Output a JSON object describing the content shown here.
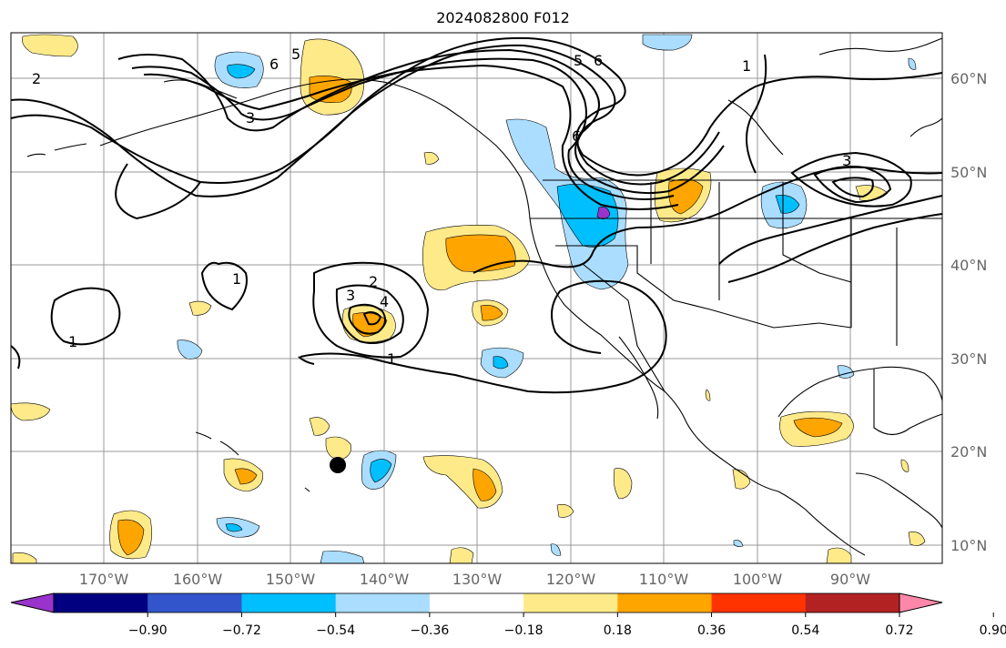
{
  "title": "2024082800 F012",
  "lat_labels": [
    "60°N",
    "50°N",
    "40°N",
    "30°N",
    "20°N",
    "10°N"
  ],
  "lon_labels": [
    "170°W",
    "160°W",
    "150°W",
    "140°W",
    "130°W",
    "120°W",
    "110°W",
    "100°W",
    "90°W"
  ],
  "colorbar": {
    "colors": [
      "#9933cc",
      "#000080",
      "#3355cc",
      "#00bfff",
      "#aaddff",
      "#ffffff",
      "#ffea8a",
      "#ffa500",
      "#ff3300",
      "#b22222",
      "#ff88aa"
    ],
    "tick_labels": [
      "−0.90",
      "−0.72",
      "−0.54",
      "−0.36",
      "−0.18",
      "0.18",
      "0.36",
      "0.54",
      "0.72",
      "0.90"
    ]
  },
  "contour_labels": [
    "1",
    "1",
    "1",
    "2",
    "3",
    "4",
    "3",
    "5",
    "6",
    "5",
    "6",
    "1",
    "6",
    "2",
    "3"
  ],
  "marker": "storm-position-dot"
}
